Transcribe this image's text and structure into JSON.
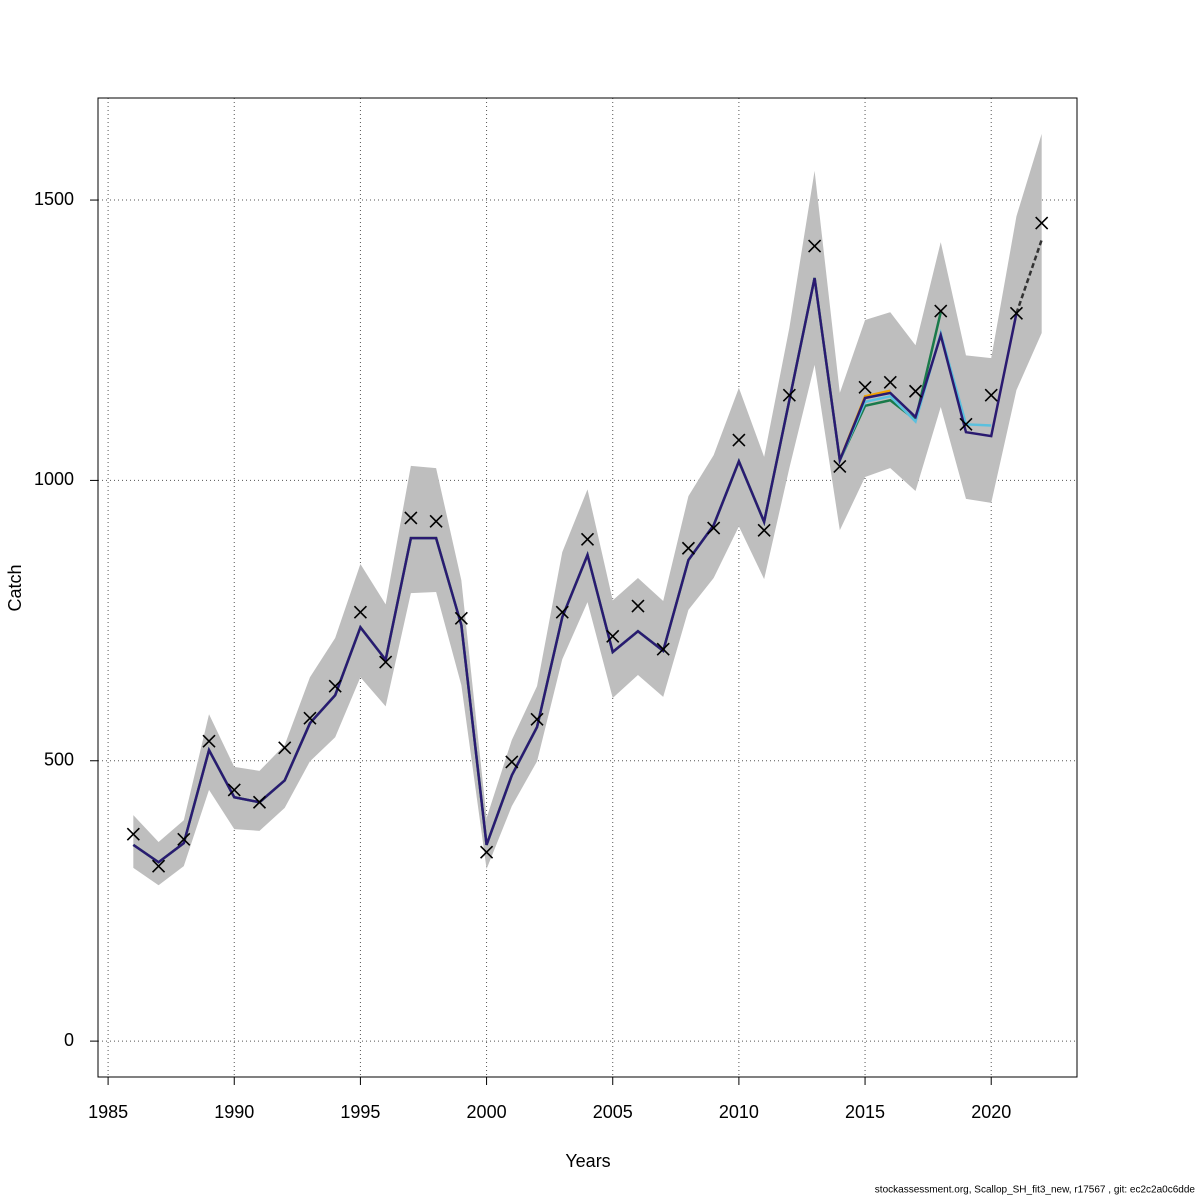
{
  "chart_data": {
    "type": "line",
    "x_label": "Years",
    "y_label": "Catch",
    "footnote": "stockassessment.org, Scallop_SH_fit3_new, r17567 , git: ec2c2a0c6dde",
    "x": [
      1986,
      1987,
      1988,
      1989,
      1990,
      1991,
      1992,
      1993,
      1994,
      1995,
      1996,
      1997,
      1998,
      1999,
      2000,
      2001,
      2002,
      2003,
      2004,
      2005,
      2006,
      2007,
      2008,
      2009,
      2010,
      2011,
      2012,
      2013,
      2014,
      2015,
      2016,
      2017,
      2018,
      2019,
      2020,
      2021,
      2022
    ],
    "observed": [
      369,
      312,
      360,
      535,
      448,
      426,
      523,
      576,
      633,
      765,
      676,
      933,
      927,
      754,
      337,
      498,
      574,
      765,
      895,
      722,
      776,
      699,
      879,
      915,
      1072,
      911,
      1152,
      1418,
      1025,
      1166,
      1175,
      1159,
      1302,
      1100,
      1152,
      1298,
      1459
    ],
    "band_upper": [
      403,
      355,
      394,
      583,
      489,
      482,
      528,
      649,
      719,
      851,
      779,
      1026,
      1022,
      822,
      398,
      537,
      633,
      872,
      984,
      786,
      826,
      785,
      972,
      1045,
      1165,
      1042,
      1272,
      1552,
      1156,
      1286,
      1300,
      1241,
      1425,
      1223,
      1218,
      1471,
      1618
    ],
    "band_lower": [
      309,
      278,
      312,
      448,
      378,
      375,
      416,
      499,
      542,
      649,
      597,
      799,
      801,
      635,
      307,
      419,
      499,
      681,
      783,
      612,
      653,
      614,
      769,
      826,
      918,
      824,
      1022,
      1206,
      911,
      1006,
      1022,
      981,
      1131,
      967,
      960,
      1161,
      1263
    ],
    "band_color": "#bebebe",
    "series": [
      {
        "color": "#f0a000",
        "dashed": false,
        "values": [
          350,
          319,
          353,
          519,
          435,
          426,
          465,
          567,
          617,
          738,
          680,
          897,
          897,
          742,
          350,
          474,
          560,
          756,
          867,
          694,
          731,
          696,
          858,
          920,
          1034,
          926,
          1143,
          1361,
          1036,
          1150,
          1160,
          null,
          null,
          null,
          null,
          null,
          null
        ]
      },
      {
        "color": "#1a7a4a",
        "dashed": false,
        "values": [
          350,
          319,
          353,
          519,
          435,
          426,
          465,
          567,
          617,
          738,
          680,
          897,
          897,
          742,
          350,
          474,
          560,
          756,
          867,
          694,
          731,
          696,
          858,
          920,
          1034,
          926,
          1143,
          1361,
          1036,
          1133,
          1143,
          1108,
          1300,
          null,
          null,
          null,
          null
        ]
      },
      {
        "color": "#5bc0de",
        "dashed": false,
        "values": [
          350,
          319,
          353,
          519,
          435,
          426,
          465,
          567,
          617,
          738,
          680,
          897,
          897,
          742,
          350,
          474,
          560,
          756,
          867,
          694,
          731,
          696,
          858,
          920,
          1034,
          926,
          1143,
          1361,
          1036,
          1140,
          1150,
          1105,
          1262,
          1100,
          1098,
          null,
          null
        ]
      },
      {
        "color": "#2a1a70",
        "dashed": false,
        "values": [
          350,
          319,
          353,
          519,
          435,
          426,
          465,
          567,
          617,
          738,
          680,
          897,
          897,
          742,
          350,
          474,
          560,
          756,
          867,
          694,
          731,
          696,
          858,
          920,
          1034,
          926,
          1143,
          1361,
          1036,
          1147,
          1156,
          1113,
          1259,
          1086,
          1079,
          1298,
          null
        ]
      },
      {
        "color": "#333333",
        "dashed": true,
        "values": [
          null,
          null,
          null,
          null,
          null,
          null,
          null,
          null,
          null,
          null,
          null,
          null,
          null,
          null,
          null,
          null,
          null,
          null,
          null,
          null,
          null,
          null,
          null,
          null,
          null,
          null,
          null,
          null,
          null,
          null,
          null,
          null,
          null,
          null,
          null,
          1298,
          1429
        ]
      }
    ],
    "xlim": [
      1984.6,
      2023.4
    ],
    "ylim": [
      -64,
      1682
    ],
    "xticks": [
      1985,
      1990,
      1995,
      2000,
      2005,
      2010,
      2015,
      2020
    ],
    "yticks": [
      0,
      500,
      1000,
      1500
    ],
    "grid": true
  }
}
